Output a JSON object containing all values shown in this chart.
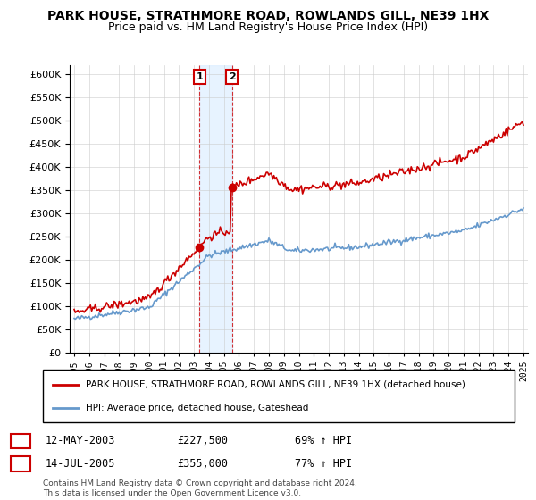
{
  "title1": "PARK HOUSE, STRATHMORE ROAD, ROWLANDS GILL, NE39 1HX",
  "title2": "Price paid vs. HM Land Registry's House Price Index (HPI)",
  "legend_line1": "PARK HOUSE, STRATHMORE ROAD, ROWLANDS GILL, NE39 1HX (detached house)",
  "legend_line2": "HPI: Average price, detached house, Gateshead",
  "sale1_date": "12-MAY-2003",
  "sale1_price": "£227,500",
  "sale1_hpi": "69% ↑ HPI",
  "sale2_date": "14-JUL-2005",
  "sale2_price": "£355,000",
  "sale2_hpi": "77% ↑ HPI",
  "footer": "Contains HM Land Registry data © Crown copyright and database right 2024.\nThis data is licensed under the Open Government Licence v3.0.",
  "red_color": "#cc0000",
  "blue_color": "#6699cc",
  "shade_color": "#ddeeff",
  "ylim_min": 0,
  "ylim_max": 620000,
  "sale1_year": 2003.36,
  "sale1_value": 227500,
  "sale2_year": 2005.54,
  "sale2_value": 355000
}
